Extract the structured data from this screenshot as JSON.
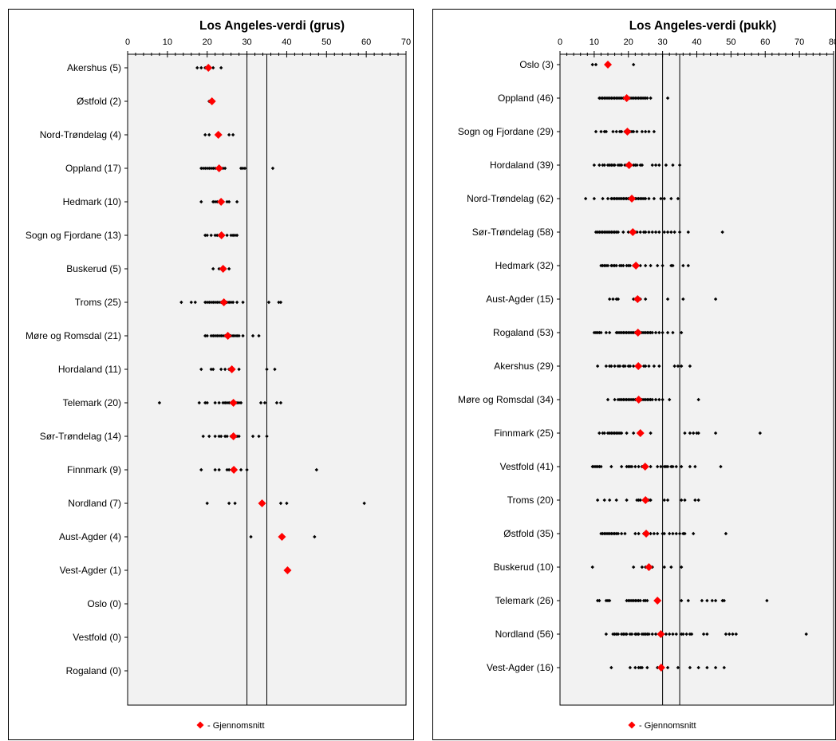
{
  "colors": {
    "mean": "#ff0000",
    "dots": "#000000",
    "plot_bg": "#f2f2f2",
    "grid": "#000000"
  },
  "legend": {
    "mean_label": "- Gjennomsnitt"
  },
  "chart_data": [
    {
      "type": "scatter",
      "title": "Los Angeles-verdi (grus)",
      "xlim": [
        0,
        70
      ],
      "xticks": [
        0,
        10,
        20,
        30,
        40,
        50,
        60,
        70
      ],
      "reference_lines": [
        30,
        35
      ],
      "legend_placement": "bottom-center",
      "grid": false,
      "categories": [
        {
          "label": "Akershus (5)",
          "mean": 20.3,
          "values": [
            17.5,
            18.5,
            19.5,
            20.5,
            21.5,
            23.5
          ]
        },
        {
          "label": "Østfold (2)",
          "mean": 21.2,
          "values": [
            20.5,
            21.5
          ]
        },
        {
          "label": "Nord-Trøndelag (4)",
          "mean": 22.8,
          "values": [
            19.5,
            20.5,
            25.5,
            26.5
          ]
        },
        {
          "label": "Oppland (17)",
          "mean": 23.0,
          "values": [
            18.5,
            19.0,
            19.5,
            20.0,
            20.5,
            21.0,
            21.5,
            22.0,
            22.5,
            23.0,
            24.0,
            24.5,
            28.5,
            29.0,
            29.5,
            36.5
          ]
        },
        {
          "label": "Hedmark (10)",
          "mean": 23.5,
          "values": [
            18.5,
            21.5,
            22.0,
            22.5,
            23.0,
            23.5,
            24.0,
            25.0,
            25.5,
            27.5
          ]
        },
        {
          "label": "Sogn og Fjordane (13)",
          "mean": 23.6,
          "values": [
            19.5,
            20.0,
            21.0,
            22.0,
            22.5,
            23.0,
            23.5,
            24.0,
            25.0,
            26.0,
            26.5,
            27.0,
            27.5
          ]
        },
        {
          "label": "Buskerud (5)",
          "mean": 24.0,
          "values": [
            21.5,
            23.0,
            24.0,
            24.5,
            25.5
          ]
        },
        {
          "label": "Troms (25)",
          "mean": 24.2,
          "values": [
            13.5,
            16.0,
            17.0,
            19.5,
            20.0,
            20.5,
            21.0,
            21.5,
            22.0,
            22.5,
            23.0,
            23.5,
            24.0,
            24.5,
            25.0,
            25.5,
            26.0,
            26.5,
            27.5,
            29.0,
            35.5,
            38.0,
            38.5
          ]
        },
        {
          "label": "Møre og Romsdal (21)",
          "mean": 25.2,
          "values": [
            19.5,
            20.0,
            21.0,
            21.5,
            22.0,
            22.5,
            23.0,
            23.5,
            24.0,
            24.5,
            25.0,
            25.5,
            26.0,
            26.5,
            27.0,
            27.5,
            28.0,
            29.0,
            31.5,
            33.0
          ]
        },
        {
          "label": "Hordaland (11)",
          "mean": 26.2,
          "values": [
            18.5,
            21.0,
            21.5,
            23.5,
            24.5,
            25.5,
            26.0,
            26.5,
            28.0,
            35.0,
            37.0
          ]
        },
        {
          "label": "Telemark (20)",
          "mean": 26.6,
          "values": [
            8.0,
            18.0,
            19.5,
            20.0,
            22.0,
            23.0,
            24.0,
            24.5,
            25.0,
            25.5,
            26.0,
            26.5,
            27.0,
            27.5,
            28.0,
            28.5,
            33.5,
            34.5,
            37.5,
            38.5
          ]
        },
        {
          "label": "Sør-Trøndelag (14)",
          "mean": 26.6,
          "values": [
            19.0,
            20.5,
            22.0,
            23.0,
            23.5,
            24.5,
            25.0,
            26.0,
            26.5,
            27.5,
            28.0,
            31.5,
            33.0,
            35.0
          ]
        },
        {
          "label": "Finnmark (9)",
          "mean": 26.7,
          "values": [
            18.5,
            22.0,
            23.0,
            25.0,
            25.5,
            28.5,
            30.0,
            47.5
          ]
        },
        {
          "label": "Nordland (7)",
          "mean": 33.8,
          "values": [
            20.0,
            25.5,
            27.0,
            38.5,
            40.0,
            59.5
          ]
        },
        {
          "label": "Aust-Agder (4)",
          "mean": 38.8,
          "values": [
            31.0,
            38.5,
            39.0,
            47.0
          ]
        },
        {
          "label": "Vest-Agder (1)",
          "mean": 40.2,
          "values": [
            40.2
          ]
        },
        {
          "label": "Oslo (0)",
          "mean": null,
          "values": []
        },
        {
          "label": "Vestfold (0)",
          "mean": null,
          "values": []
        },
        {
          "label": "Rogaland (0)",
          "mean": null,
          "values": []
        }
      ]
    },
    {
      "type": "scatter",
      "title": "Los Angeles-verdi (pukk)",
      "xlim": [
        0,
        80
      ],
      "xticks": [
        0,
        10,
        20,
        30,
        40,
        50,
        60,
        70,
        80
      ],
      "reference_lines": [
        30,
        35
      ],
      "legend_placement": "bottom-center",
      "grid": false,
      "categories": [
        {
          "label": "Oslo (3)",
          "mean": 14.0,
          "values": [
            9.5,
            10.5,
            14.0,
            21.5
          ]
        },
        {
          "label": "Oppland (46)",
          "mean": 19.5,
          "values": [
            11.5,
            12.0,
            12.5,
            13.0,
            13.5,
            14.0,
            14.5,
            15.0,
            15.5,
            16.0,
            16.5,
            17.0,
            17.5,
            18.0,
            18.5,
            19.0,
            19.5,
            20.0,
            20.5,
            21.0,
            21.5,
            22.0,
            22.5,
            23.0,
            23.5,
            24.0,
            24.5,
            25.0,
            25.5,
            26.5,
            31.5
          ]
        },
        {
          "label": "Sogn og Fjordane (29)",
          "mean": 19.7,
          "values": [
            10.5,
            12.0,
            13.0,
            13.5,
            15.5,
            16.5,
            17.5,
            18.0,
            19.0,
            19.5,
            20.5,
            21.0,
            21.5,
            22.5,
            24.0,
            25.0,
            26.0,
            27.5
          ]
        },
        {
          "label": "Hordaland (39)",
          "mean": 20.2,
          "values": [
            10.0,
            11.5,
            12.5,
            13.0,
            14.0,
            14.5,
            15.0,
            15.5,
            16.0,
            17.0,
            17.5,
            18.0,
            19.0,
            19.5,
            20.5,
            21.5,
            22.0,
            22.5,
            23.5,
            24.0,
            27.0,
            28.0,
            29.0,
            31.0,
            33.0,
            35.0
          ]
        },
        {
          "label": "Nord-Trøndelag (62)",
          "mean": 21.0,
          "values": [
            7.5,
            10.0,
            12.5,
            14.0,
            15.0,
            15.5,
            16.0,
            16.5,
            17.0,
            17.5,
            18.0,
            18.5,
            19.0,
            19.5,
            20.0,
            20.5,
            21.5,
            22.0,
            22.5,
            23.0,
            23.5,
            24.0,
            24.5,
            25.0,
            26.0,
            27.5,
            29.5,
            30.5,
            32.5,
            34.5
          ]
        },
        {
          "label": "Sør-Trøndelag (58)",
          "mean": 21.3,
          "values": [
            10.5,
            11.0,
            11.5,
            12.0,
            12.5,
            13.0,
            13.5,
            14.0,
            14.5,
            15.0,
            15.5,
            16.0,
            16.5,
            17.0,
            18.5,
            20.0,
            21.0,
            22.0,
            22.5,
            23.5,
            24.5,
            25.0,
            26.0,
            27.0,
            28.0,
            29.0,
            30.5,
            31.5,
            32.5,
            33.5,
            35.0,
            37.5,
            47.5
          ]
        },
        {
          "label": "Hedmark (32)",
          "mean": 22.2,
          "values": [
            12.0,
            12.5,
            13.0,
            13.5,
            14.0,
            15.0,
            15.5,
            16.0,
            16.5,
            17.5,
            18.0,
            18.5,
            19.5,
            20.0,
            20.5,
            21.5,
            22.5,
            23.5,
            25.0,
            26.5,
            28.5,
            30.0,
            32.5,
            33.0,
            36.0,
            37.5
          ]
        },
        {
          "label": "Aust-Agder (15)",
          "mean": 22.7,
          "values": [
            14.5,
            15.5,
            16.5,
            17.0,
            21.5,
            22.0,
            22.5,
            23.0,
            23.5,
            25.0,
            31.5,
            36.0,
            45.5
          ]
        },
        {
          "label": "Rogaland (53)",
          "mean": 22.8,
          "values": [
            10.0,
            10.5,
            11.0,
            11.5,
            12.0,
            13.5,
            14.5,
            16.5,
            17.0,
            17.5,
            18.0,
            18.5,
            19.0,
            19.5,
            20.0,
            20.5,
            21.0,
            21.5,
            22.0,
            22.5,
            23.0,
            23.5,
            24.0,
            24.5,
            25.0,
            25.5,
            26.0,
            26.5,
            27.0,
            28.0,
            29.0,
            30.0,
            31.5,
            33.0,
            35.5
          ]
        },
        {
          "label": "Akershus (29)",
          "mean": 22.9,
          "values": [
            11.0,
            13.5,
            14.5,
            15.0,
            16.0,
            17.0,
            17.5,
            18.5,
            19.0,
            20.0,
            20.5,
            21.5,
            22.5,
            23.5,
            24.5,
            25.0,
            26.0,
            27.5,
            29.0,
            33.5,
            34.5,
            35.5,
            38.0
          ]
        },
        {
          "label": "Møre og Romsdal (34)",
          "mean": 23.0,
          "values": [
            14.0,
            16.0,
            17.0,
            17.5,
            18.0,
            18.5,
            19.0,
            19.5,
            20.0,
            20.5,
            21.0,
            21.5,
            22.0,
            22.5,
            23.5,
            24.0,
            24.5,
            25.0,
            25.5,
            26.0,
            26.5,
            27.0,
            28.0,
            29.0,
            30.0,
            32.0,
            40.5
          ]
        },
        {
          "label": "Finnmark (25)",
          "mean": 23.5,
          "values": [
            11.5,
            12.5,
            13.0,
            14.0,
            14.5,
            15.0,
            15.5,
            16.0,
            16.5,
            17.0,
            17.5,
            18.0,
            19.5,
            21.5,
            23.5,
            26.5,
            36.5,
            38.0,
            39.0,
            40.0,
            40.5,
            45.5,
            58.5
          ]
        },
        {
          "label": "Vestfold (41)",
          "mean": 24.9,
          "values": [
            9.5,
            10.0,
            10.5,
            11.0,
            11.5,
            12.0,
            15.0,
            18.0,
            19.5,
            20.0,
            20.5,
            21.0,
            22.0,
            23.0,
            24.0,
            24.5,
            26.5,
            28.5,
            29.5,
            30.5,
            31.0,
            31.5,
            32.5,
            33.0,
            34.0,
            35.5,
            38.0,
            39.5,
            47.0
          ]
        },
        {
          "label": "Troms (20)",
          "mean": 25.0,
          "values": [
            11.0,
            13.0,
            14.5,
            16.5,
            19.5,
            22.5,
            23.0,
            23.5,
            24.5,
            25.5,
            26.0,
            26.5,
            30.5,
            31.5,
            35.5,
            36.5,
            39.5,
            40.5
          ]
        },
        {
          "label": "Østfold (35)",
          "mean": 25.2,
          "values": [
            12.0,
            12.5,
            13.0,
            13.5,
            14.0,
            14.5,
            15.0,
            15.5,
            16.0,
            16.5,
            17.0,
            18.0,
            19.0,
            22.0,
            23.0,
            24.5,
            25.5,
            26.5,
            27.5,
            28.5,
            30.0,
            30.5,
            32.0,
            33.0,
            34.0,
            35.0,
            36.0,
            36.5,
            39.0,
            48.5
          ]
        },
        {
          "label": "Buskerud (10)",
          "mean": 26.0,
          "values": [
            9.5,
            21.5,
            24.0,
            25.0,
            26.5,
            27.0,
            30.5,
            32.5,
            35.5
          ]
        },
        {
          "label": "Telemark (26)",
          "mean": 28.5,
          "values": [
            11.0,
            11.5,
            13.5,
            14.0,
            14.5,
            19.5,
            20.0,
            20.5,
            21.0,
            21.5,
            22.0,
            22.5,
            23.0,
            23.5,
            24.5,
            25.0,
            25.5,
            28.5,
            29.0,
            35.5,
            37.5,
            41.5,
            43.0,
            44.5,
            45.5,
            47.5,
            48.0,
            60.5
          ]
        },
        {
          "label": "Nordland (56)",
          "mean": 29.5,
          "values": [
            13.5,
            15.5,
            16.0,
            16.5,
            17.0,
            18.0,
            18.5,
            19.0,
            19.5,
            20.5,
            21.0,
            22.0,
            22.5,
            23.0,
            24.0,
            24.5,
            25.0,
            25.5,
            26.0,
            27.0,
            28.0,
            29.0,
            30.0,
            31.0,
            32.0,
            33.0,
            34.0,
            35.5,
            36.0,
            37.0,
            38.0,
            38.5,
            42.0,
            43.0,
            48.5,
            49.5,
            50.5,
            51.5,
            72.0
          ]
        },
        {
          "label": "Vest-Agder (16)",
          "mean": 29.6,
          "values": [
            15.0,
            20.5,
            22.0,
            23.0,
            23.5,
            24.0,
            25.5,
            28.5,
            30.0,
            31.5,
            34.5,
            38.0,
            40.5,
            43.0,
            45.5,
            48.0
          ]
        }
      ]
    }
  ]
}
